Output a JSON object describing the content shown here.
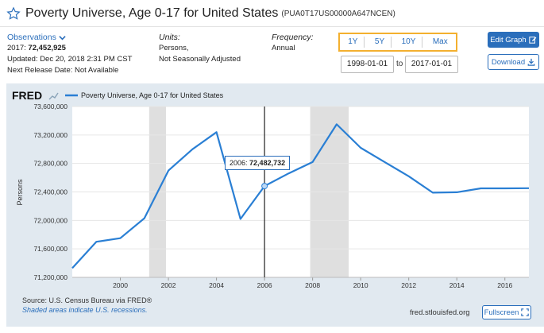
{
  "header": {
    "title": "Poverty Universe, Age 0-17 for United States",
    "series_id": "(PUA0T17US00000A647NCEN)"
  },
  "observations": {
    "label": "Observations",
    "latest_period": "2017:",
    "latest_value": "72,452,925",
    "updated": "Updated: Dec 20, 2018 2:31 PM CST",
    "next_release": "Next Release Date: Not Available"
  },
  "units": {
    "label": "Units:",
    "line1": "Persons,",
    "line2": "Not Seasonally Adjusted"
  },
  "frequency": {
    "label": "Frequency:",
    "value": "Annual"
  },
  "range_buttons": [
    "1Y",
    "5Y",
    "10Y",
    "Max"
  ],
  "dates": {
    "start": "1998-01-01",
    "to_label": "to",
    "end": "2017-01-01"
  },
  "buttons": {
    "edit_graph": "Edit Graph",
    "download": "Download",
    "fullscreen": "Fullscreen"
  },
  "chart": {
    "logo": "FRED",
    "legend": "Poverty Universe, Age 0-17 for United States",
    "source": "Source: U.S. Census Bureau via FRED®",
    "shaded_note": "Shaded areas indicate U.S. recessions.",
    "url": "fred.stlouisfed.org",
    "tooltip_year": "2006:",
    "tooltip_value": "72,482,732"
  },
  "colors": {
    "line": "#2a7fd4",
    "accent": "#2a6ebb",
    "highlight_box": "#f3b02f",
    "recession": "#d4d4d4"
  },
  "chart_data": {
    "type": "line",
    "ylabel": "Persons",
    "xlabel": "",
    "ylim": [
      71200000,
      73600000
    ],
    "xlim": [
      1998,
      2017
    ],
    "yticks": [
      "71,200,000",
      "71,600,000",
      "72,000,000",
      "72,400,000",
      "72,800,000",
      "73,200,000",
      "73,600,000"
    ],
    "xticks": [
      "2000",
      "2002",
      "2004",
      "2006",
      "2008",
      "2010",
      "2012",
      "2014",
      "2016"
    ],
    "recessions": [
      [
        2001.2,
        2001.9
      ],
      [
        2007.9,
        2009.5
      ]
    ],
    "series": [
      {
        "name": "Poverty Universe, Age 0-17 for United States",
        "x": [
          1998,
          1999,
          2000,
          2001,
          2002,
          2003,
          2004,
          2005,
          2006,
          2007,
          2008,
          2009,
          2010,
          2011,
          2012,
          2013,
          2014,
          2015,
          2016,
          2017
        ],
        "y": [
          71330000,
          71700000,
          71750000,
          72030000,
          72700000,
          73000000,
          73240000,
          72020000,
          72482732,
          72660000,
          72820000,
          73350000,
          73020000,
          72820000,
          72620000,
          72390000,
          72395000,
          72450000,
          72450000,
          72452925
        ]
      }
    ]
  }
}
